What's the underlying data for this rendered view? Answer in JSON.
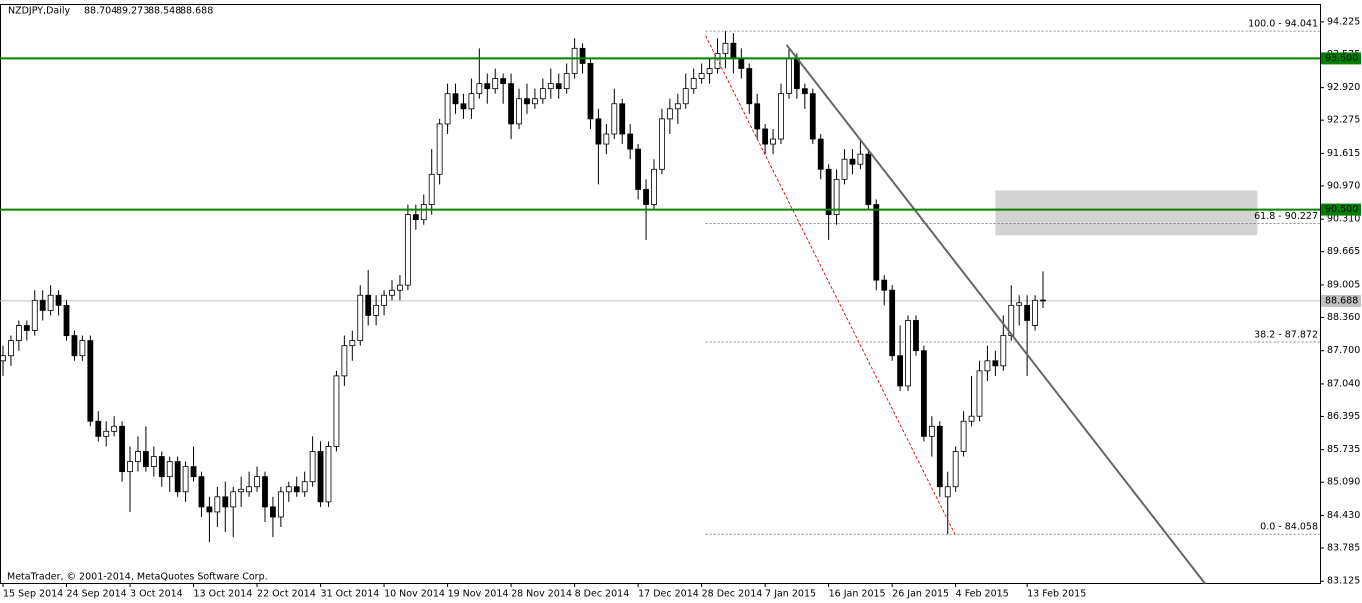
{
  "chart_data": {
    "type": "candlestick",
    "symbol": "NZDJPY,Daily",
    "footer": "MetaTrader, © 2001-2014, MetaQuotes Software Corp.",
    "ylim": [
      83.09,
      94.56
    ],
    "yticks": [
      94.225,
      {
        "value": 93.575,
        "label": "93.575"
      },
      {
        "value": 92.92,
        "label": "92.920"
      },
      92.275,
      91.615,
      {
        "value": 90.97,
        "label": "90.970"
      },
      {
        "value": 90.31,
        "label": "90.310"
      },
      89.665,
      89.005,
      {
        "value": 88.36,
        "label": "88.360"
      },
      {
        "value": 87.7,
        "label": "87.700"
      },
      {
        "value": 87.04,
        "label": "87.040"
      },
      86.395,
      85.735,
      {
        "value": 85.09,
        "label": "85.090"
      },
      {
        "value": 84.43,
        "label": "84.430"
      },
      83.785,
      83.125
    ],
    "xticks": [
      {
        "value": 0,
        "label": "15 Sep 2014"
      },
      {
        "value": 8,
        "label": "24 Sep 2014"
      },
      {
        "value": 16,
        "label": "3 Oct 2014"
      },
      {
        "value": 24,
        "label": "13 Oct 2014"
      },
      {
        "value": 32,
        "label": "22 Oct 2014"
      },
      {
        "value": 40,
        "label": "31 Oct 2014"
      },
      {
        "value": 48,
        "label": "10 Nov 2014"
      },
      {
        "value": 56,
        "label": "19 Nov 2014"
      },
      {
        "value": 64,
        "label": "28 Nov 2014"
      },
      {
        "value": 72,
        "label": "8 Dec 2014"
      },
      {
        "value": 80,
        "label": "17 Dec 2014"
      },
      {
        "value": 88,
        "label": "28 Dec 2014"
      },
      {
        "value": 96,
        "label": "7 Jan 2015"
      },
      {
        "value": 104,
        "label": "16 Jan 2015"
      },
      {
        "value": 112,
        "label": "26 Jan 2015"
      },
      {
        "value": 120,
        "label": "4 Feb 2015"
      },
      {
        "value": 129,
        "label": "13 Feb 2015"
      }
    ],
    "levels": [
      {
        "value": 93.5,
        "label": "93.500"
      },
      {
        "value": 90.5,
        "label": "90.500"
      }
    ],
    "level_color": "#008000",
    "fib_start": 88.5,
    "fib": [
      {
        "value": 94.041,
        "label": "100.0 - 94.041"
      },
      {
        "value": 90.227,
        "label": "61.8 - 90.227"
      },
      {
        "value": 87.872,
        "label": "38.2 - 87.872"
      },
      {
        "value": 84.058,
        "label": "0.0 - 84.058"
      }
    ],
    "trendline": [
      [
        98.7,
        93.77
      ],
      [
        151.4,
        83.08
      ]
    ],
    "fib_trend": [
      [
        88.5,
        93.95
      ],
      [
        119.9,
        84.06
      ]
    ],
    "zone": [
      [
        125,
        90.88
      ],
      [
        158,
        89.99
      ]
    ],
    "candles": [
      [
        87.5,
        87.8,
        87.2,
        87.6
      ],
      [
        87.6,
        88.0,
        87.4,
        87.9
      ],
      [
        87.9,
        88.3,
        87.7,
        88.2
      ],
      [
        88.2,
        88.3,
        87.9,
        88.1
      ],
      [
        88.1,
        88.9,
        88.0,
        88.7
      ],
      [
        88.7,
        88.9,
        88.3,
        88.5
      ],
      [
        88.5,
        89.0,
        88.4,
        88.8
      ],
      [
        88.8,
        88.9,
        88.4,
        88.6
      ],
      [
        88.6,
        88.7,
        87.9,
        88.0
      ],
      [
        88.0,
        88.1,
        87.5,
        87.6
      ],
      [
        87.6,
        88.0,
        87.5,
        87.9
      ],
      [
        87.9,
        88.0,
        86.2,
        86.3
      ],
      [
        86.3,
        86.5,
        85.9,
        86.0
      ],
      [
        86.0,
        86.3,
        85.8,
        86.1
      ],
      [
        86.1,
        86.4,
        86.0,
        86.2
      ],
      [
        86.2,
        86.3,
        85.1,
        85.3
      ],
      [
        85.3,
        85.8,
        84.5,
        85.5
      ],
      [
        85.5,
        86.0,
        85.3,
        85.7
      ],
      [
        85.7,
        86.2,
        85.3,
        85.4
      ],
      [
        85.4,
        85.8,
        85.2,
        85.6
      ],
      [
        85.6,
        85.7,
        85.0,
        85.2
      ],
      [
        85.2,
        85.6,
        84.9,
        85.5
      ],
      [
        85.5,
        85.6,
        84.8,
        84.9
      ],
      [
        84.9,
        85.5,
        84.7,
        85.4
      ],
      [
        85.4,
        85.8,
        85.1,
        85.2
      ],
      [
        85.2,
        85.3,
        84.4,
        84.6
      ],
      [
        84.6,
        84.8,
        83.9,
        84.5
      ],
      [
        84.5,
        85.0,
        84.2,
        84.8
      ],
      [
        84.8,
        85.1,
        84.1,
        84.6
      ],
      [
        84.6,
        85.0,
        84.0,
        84.9
      ],
      [
        84.9,
        85.2,
        84.6,
        84.95
      ],
      [
        84.9,
        85.3,
        84.8,
        85.0
      ],
      [
        85.0,
        85.4,
        84.9,
        85.2
      ],
      [
        85.2,
        85.3,
        84.3,
        84.6
      ],
      [
        84.6,
        84.8,
        84.0,
        84.4
      ],
      [
        84.4,
        85.0,
        84.2,
        84.9
      ],
      [
        84.9,
        85.1,
        84.7,
        85.0
      ],
      [
        85.0,
        85.2,
        84.8,
        84.9
      ],
      [
        84.9,
        85.3,
        84.8,
        85.1
      ],
      [
        85.1,
        86.0,
        85.0,
        85.7
      ],
      [
        85.7,
        85.9,
        84.6,
        84.7
      ],
      [
        84.7,
        85.9,
        84.6,
        85.8
      ],
      [
        85.8,
        87.3,
        85.7,
        87.2
      ],
      [
        87.2,
        88.0,
        87.0,
        87.8
      ],
      [
        87.8,
        88.1,
        87.5,
        87.9
      ],
      [
        87.9,
        89.0,
        87.8,
        88.8
      ],
      [
        88.8,
        89.3,
        88.2,
        88.4
      ],
      [
        88.4,
        88.8,
        88.2,
        88.6
      ],
      [
        88.6,
        88.9,
        88.4,
        88.8
      ],
      [
        88.8,
        89.1,
        88.7,
        88.9
      ],
      [
        88.9,
        89.2,
        88.7,
        89.0
      ],
      [
        89.0,
        90.6,
        88.9,
        90.4
      ],
      [
        90.4,
        90.6,
        90.1,
        90.3
      ],
      [
        90.3,
        90.8,
        90.2,
        90.6
      ],
      [
        90.6,
        91.7,
        90.4,
        91.2
      ],
      [
        91.2,
        92.3,
        91.0,
        92.2
      ],
      [
        92.2,
        93.0,
        92.0,
        92.8
      ],
      [
        92.8,
        93.0,
        92.4,
        92.6
      ],
      [
        92.6,
        92.8,
        92.3,
        92.5
      ],
      [
        92.5,
        93.1,
        92.3,
        92.8
      ],
      [
        92.8,
        93.7,
        92.7,
        93.0
      ],
      [
        93.0,
        93.2,
        92.6,
        92.9
      ],
      [
        92.9,
        93.3,
        92.8,
        93.1
      ],
      [
        93.1,
        93.2,
        92.6,
        93.0
      ],
      [
        93.0,
        93.2,
        91.9,
        92.2
      ],
      [
        92.2,
        92.9,
        92.1,
        92.7
      ],
      [
        92.7,
        93.0,
        92.4,
        92.6
      ],
      [
        92.6,
        92.9,
        92.5,
        92.7
      ],
      [
        92.7,
        93.1,
        92.6,
        92.9
      ],
      [
        92.9,
        93.3,
        92.7,
        93.0
      ],
      [
        93.0,
        93.2,
        92.7,
        92.9
      ],
      [
        92.9,
        93.4,
        92.8,
        93.2
      ],
      [
        93.2,
        93.9,
        93.1,
        93.7
      ],
      [
        93.7,
        93.8,
        93.2,
        93.4
      ],
      [
        93.4,
        93.5,
        92.1,
        92.3
      ],
      [
        92.3,
        92.5,
        91.0,
        91.8
      ],
      [
        91.8,
        92.2,
        91.6,
        92.0
      ],
      [
        92.0,
        92.9,
        91.9,
        92.6
      ],
      [
        92.6,
        92.7,
        91.8,
        92.0
      ],
      [
        92.0,
        92.2,
        91.5,
        91.7
      ],
      [
        91.7,
        91.8,
        90.7,
        90.9
      ],
      [
        90.9,
        91.1,
        89.9,
        90.6
      ],
      [
        90.6,
        91.5,
        90.5,
        91.3
      ],
      [
        91.3,
        92.5,
        91.2,
        92.3
      ],
      [
        92.3,
        92.7,
        92.0,
        92.5
      ],
      [
        92.5,
        92.8,
        92.2,
        92.6
      ],
      [
        92.6,
        93.2,
        92.5,
        92.9
      ],
      [
        92.9,
        93.3,
        92.8,
        93.1
      ],
      [
        93.1,
        93.4,
        93.0,
        93.2
      ],
      [
        93.2,
        93.5,
        93.0,
        93.3
      ],
      [
        93.3,
        93.9,
        93.2,
        93.6
      ],
      [
        93.6,
        94.04,
        93.3,
        93.8
      ],
      [
        93.8,
        94.0,
        93.2,
        93.5
      ],
      [
        93.5,
        93.7,
        93.1,
        93.3
      ],
      [
        93.3,
        93.4,
        92.4,
        92.6
      ],
      [
        92.6,
        92.8,
        91.9,
        92.1
      ],
      [
        92.1,
        92.2,
        91.6,
        91.8
      ],
      [
        91.8,
        92.1,
        91.6,
        91.9
      ],
      [
        91.9,
        93.0,
        91.8,
        92.8
      ],
      [
        92.8,
        93.7,
        92.7,
        93.5
      ],
      [
        93.5,
        93.6,
        92.7,
        92.9
      ],
      [
        92.9,
        93.0,
        92.5,
        92.8
      ],
      [
        92.8,
        92.9,
        91.8,
        91.9
      ],
      [
        91.9,
        92.0,
        91.1,
        91.3
      ],
      [
        91.3,
        91.4,
        89.9,
        90.4
      ],
      [
        90.4,
        91.3,
        90.2,
        91.1
      ],
      [
        91.1,
        91.7,
        91.0,
        91.5
      ],
      [
        91.5,
        91.7,
        91.2,
        91.4
      ],
      [
        91.4,
        91.9,
        91.3,
        91.6
      ],
      [
        91.6,
        91.7,
        90.5,
        90.6
      ],
      [
        90.6,
        90.7,
        88.9,
        89.1
      ],
      [
        89.1,
        89.2,
        88.6,
        88.9
      ],
      [
        88.9,
        89.0,
        87.5,
        87.6
      ],
      [
        87.6,
        88.2,
        86.9,
        87.0
      ],
      [
        87.0,
        88.4,
        86.9,
        88.3
      ],
      [
        88.3,
        88.4,
        87.6,
        87.7
      ],
      [
        87.7,
        87.8,
        85.9,
        86.0
      ],
      [
        86.0,
        86.4,
        85.6,
        86.2
      ],
      [
        86.2,
        86.3,
        84.8,
        85.0
      ],
      [
        84.8,
        85.3,
        84.06,
        85.0
      ],
      [
        85.0,
        85.8,
        84.9,
        85.7
      ],
      [
        85.7,
        86.5,
        85.6,
        86.3
      ],
      [
        86.3,
        87.2,
        86.2,
        86.4
      ],
      [
        86.4,
        87.5,
        86.3,
        87.3
      ],
      [
        87.3,
        87.8,
        87.1,
        87.5
      ],
      [
        87.5,
        87.7,
        87.2,
        87.4
      ],
      [
        87.4,
        88.4,
        87.3,
        88.0
      ],
      [
        88.0,
        89.0,
        87.9,
        88.6
      ],
      [
        88.6,
        88.8,
        88.2,
        88.65
      ],
      [
        88.6,
        88.8,
        87.2,
        88.3
      ],
      [
        88.2,
        88.8,
        88.1,
        88.7
      ],
      [
        88.704,
        89.273,
        88.548,
        88.688
      ]
    ]
  }
}
